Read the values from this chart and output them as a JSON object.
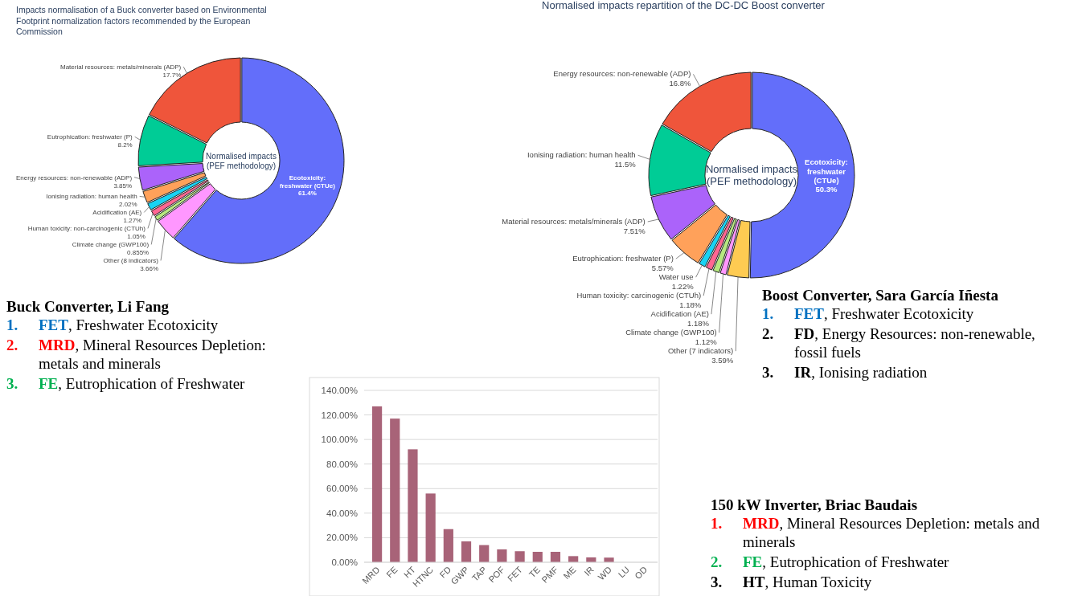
{
  "chart_data": [
    {
      "type": "donut",
      "title": "Impacts normalisation of a Buck converter based on Environmental Footprint normalization factors recommended by the European Commission",
      "annotations": [
        "Normalised impacts (PEF methodology)"
      ],
      "legend": false,
      "categories": [
        "Ecotoxicity: freshwater (CTUe)",
        "Other (8 indicators)",
        "Climate change (GWP100)",
        "Human toxicity: non-carcinogenic (CTUh)",
        "Acidification (AE)",
        "Ionising radiation: human health",
        "Energy resources: non-renewable (ADP)",
        "Eutrophication: freshwater (P)",
        "Material resources: metals/minerals (ADP)"
      ],
      "values": [
        61.4,
        3.66,
        0.855,
        1.05,
        1.27,
        2.02,
        3.85,
        8.2,
        17.7
      ],
      "value_labels": [
        "61.4%",
        "3.66%",
        "0.855%",
        "1.05%",
        "1.27%",
        "2.02%",
        "3.85%",
        "8.2%",
        "17.7%"
      ],
      "colors": [
        "#636efa",
        "#ff97ff",
        "#b6e880",
        "#ff6692",
        "#19d3f3",
        "#ffa15a",
        "#ab63fa",
        "#00cc96",
        "#ef553b"
      ]
    },
    {
      "type": "donut",
      "title": "Normalised impacts repartition of the DC-DC Boost converter",
      "annotations": [
        "Normalised impacts (PEF methodology)"
      ],
      "legend": false,
      "categories": [
        "Ecotoxicity: freshwater (CTUe)",
        "Other (7 indicators)",
        "Climate change (GWP100)",
        "Acidification (AE)",
        "Human toxicity: carcinogenic (CTUh)",
        "Water use",
        "Eutrophication: freshwater (P)",
        "Material resources: metals/minerals (ADP)",
        "Ionising radiation: human health",
        "Energy resources: non-renewable (ADP)"
      ],
      "values": [
        50.3,
        3.59,
        1.12,
        1.18,
        1.18,
        1.22,
        5.57,
        7.51,
        11.5,
        16.8
      ],
      "value_labels": [
        "50.3%",
        "3.59%",
        "1.12%",
        "1.18%",
        "1.18%",
        "1.22%",
        "5.57%",
        "7.51%",
        "11.5%",
        "16.8%"
      ],
      "colors": [
        "#636efa",
        "#fecb52",
        "#ff97ff",
        "#b6e880",
        "#ff6692",
        "#19d3f3",
        "#ffa15a",
        "#ab63fa",
        "#00cc96",
        "#ef553b"
      ]
    },
    {
      "type": "other",
      "title": "Buck Converter, Li Fang",
      "annotations": [
        "1. FET, Freshwater Ecotoxicity",
        "2. MRD, Mineral Resources Depletion: metals and minerals",
        "3. FE, Eutrophication of Freshwater"
      ],
      "colors": [
        "#0070c0",
        "#ff0000",
        "#00b050"
      ]
    },
    {
      "type": "other",
      "title": "Boost Converter, Sara García Iñesta",
      "annotations": [
        "1. FET, Freshwater Ecotoxicity",
        "2. FD, Energy Resources: non-renewable, fossil fuels",
        "3. IR, Ionising radiation"
      ],
      "colors": [
        "#0070c0",
        "#000000",
        "#000000"
      ]
    },
    {
      "type": "bar",
      "categories": [
        "MRD",
        "FE",
        "HT",
        "HTNC",
        "FD",
        "GWP",
        "TAP",
        "POF",
        "FET",
        "TE",
        "PMF",
        "ME",
        "IR",
        "WD",
        "LU",
        "OD"
      ],
      "values": [
        127,
        117,
        92,
        56,
        27,
        17,
        14,
        10.5,
        9,
        8.5,
        8.5,
        5,
        4,
        3.8,
        null,
        null
      ],
      "color": "#a86378",
      "ylim": [
        0,
        140
      ],
      "yticks": [
        {
          "value": 0,
          "label": "0.00%"
        },
        {
          "value": 20,
          "label": "20.00%"
        },
        {
          "value": 40,
          "label": "40.00%"
        },
        {
          "value": 60,
          "label": "60.00%"
        },
        {
          "value": 80,
          "label": "80.00%"
        },
        {
          "value": 100,
          "label": "100.00%"
        },
        {
          "value": 120,
          "label": "120.00%"
        },
        {
          "value": 140,
          "label": "140.00%"
        }
      ],
      "grid": "y"
    },
    {
      "type": "other",
      "title": "150 kW Inverter, Briac Baudais",
      "annotations": [
        "1. MRD, Mineral Resources Depletion: metals and minerals",
        "2. FE, Eutrophication of Freshwater",
        "3. HT, Human Toxicity"
      ],
      "colors": [
        "#ff0000",
        "#00b050",
        "#000000"
      ]
    }
  ]
}
